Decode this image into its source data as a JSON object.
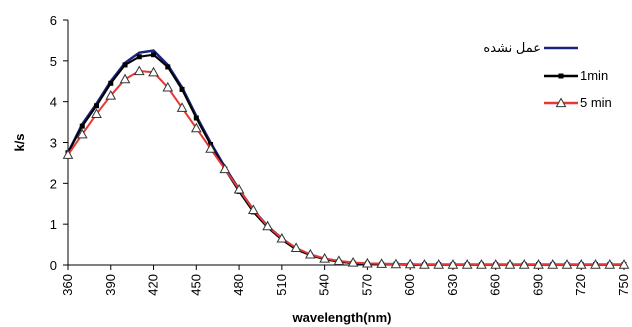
{
  "chart_data": {
    "type": "line",
    "xlabel": "wavelength(nm)",
    "ylabel": "k/s",
    "xlim": [
      360,
      750
    ],
    "ylim": [
      0,
      6
    ],
    "x_ticks": [
      360,
      390,
      420,
      450,
      480,
      510,
      540,
      570,
      600,
      630,
      660,
      690,
      720,
      750
    ],
    "y_ticks": [
      0,
      1,
      2,
      3,
      4,
      5,
      6
    ],
    "grid": false,
    "legend_position": "top-right",
    "x": [
      360,
      370,
      380,
      390,
      400,
      410,
      420,
      430,
      440,
      450,
      460,
      470,
      480,
      490,
      500,
      510,
      520,
      530,
      540,
      550,
      560,
      570,
      580,
      590,
      600,
      610,
      620,
      630,
      640,
      650,
      660,
      670,
      680,
      690,
      700,
      710,
      720,
      730,
      740,
      750
    ],
    "series": [
      {
        "name": "عمل نشده",
        "color": "#1a237e",
        "marker": "none",
        "values": [
          2.75,
          3.45,
          3.95,
          4.5,
          4.95,
          5.2,
          5.25,
          4.9,
          4.35,
          3.65,
          3.0,
          2.4,
          1.85,
          1.35,
          0.95,
          0.65,
          0.4,
          0.25,
          0.15,
          0.09,
          0.05,
          0.03,
          0.02,
          0.02,
          0.01,
          0.01,
          0.01,
          0.01,
          0.01,
          0.01,
          0.01,
          0.01,
          0.01,
          0.01,
          0.01,
          0.01,
          0.01,
          0.01,
          0.01,
          0.01
        ]
      },
      {
        "name": "1min",
        "color": "#000000",
        "marker": "square",
        "values": [
          2.75,
          3.4,
          3.9,
          4.45,
          4.9,
          5.1,
          5.15,
          4.85,
          4.3,
          3.6,
          2.95,
          2.35,
          1.8,
          1.3,
          0.92,
          0.62,
          0.38,
          0.24,
          0.14,
          0.08,
          0.05,
          0.03,
          0.02,
          0.02,
          0.01,
          0.01,
          0.01,
          0.01,
          0.01,
          0.01,
          0.01,
          0.01,
          0.01,
          0.01,
          0.01,
          0.01,
          0.01,
          0.01,
          0.01,
          0.01
        ]
      },
      {
        "name": "5 min",
        "color": "#e53935",
        "marker": "triangle",
        "values": [
          2.7,
          3.2,
          3.7,
          4.15,
          4.55,
          4.75,
          4.72,
          4.35,
          3.85,
          3.35,
          2.85,
          2.35,
          1.85,
          1.35,
          0.95,
          0.65,
          0.42,
          0.26,
          0.16,
          0.1,
          0.06,
          0.04,
          0.03,
          0.02,
          0.02,
          0.01,
          0.01,
          0.01,
          0.01,
          0.01,
          0.01,
          0.01,
          0.01,
          0.01,
          0.01,
          0.01,
          0.01,
          0.01,
          0.01,
          0.01
        ]
      }
    ]
  }
}
